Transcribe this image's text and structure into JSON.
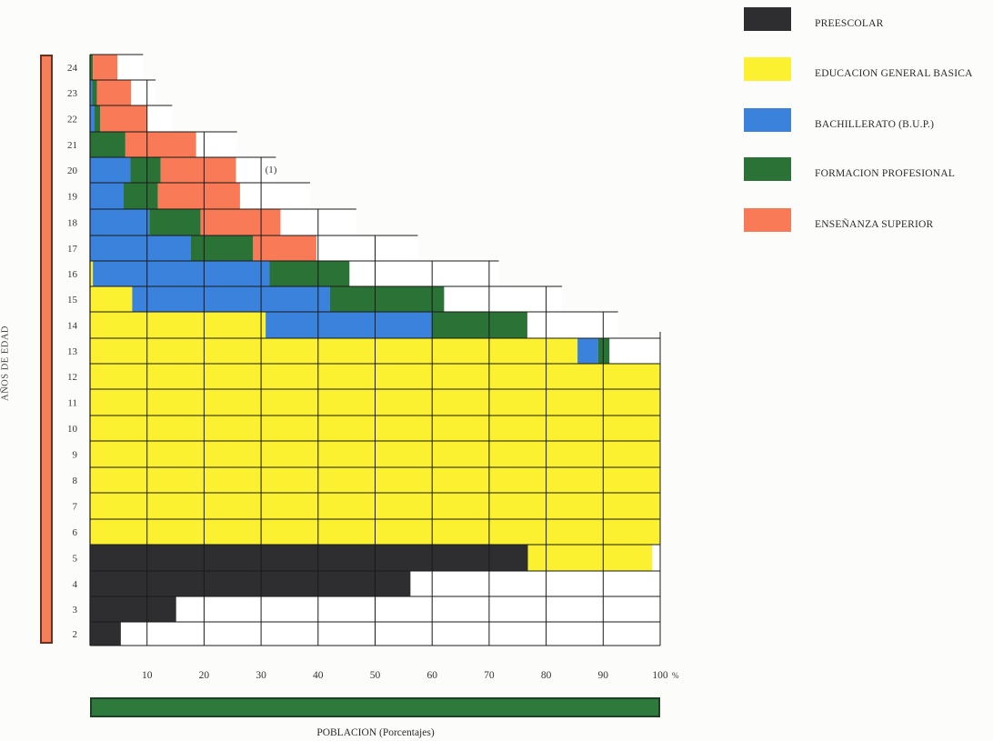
{
  "colors": {
    "preescolar": "#2e2e30",
    "egb": "#fbf130",
    "bup": "#3a82dc",
    "fp": "#2b7236",
    "superior": "#f87a56",
    "age_bar": "#f57f5b",
    "population_bar": "#2e7a3c"
  },
  "legend": [
    {
      "key": "preescolar",
      "label": "PREESCOLAR"
    },
    {
      "key": "egb",
      "label": "EDUCACION GENERAL BASICA"
    },
    {
      "key": "bup",
      "label": "BACHILLERATO (B.U.P.)"
    },
    {
      "key": "fp",
      "label": "FORMACION PROFESIONAL"
    },
    {
      "key": "superior",
      "label": "ENSEÑANZA SUPERIOR"
    }
  ],
  "y_axis_label": "AÑOS DE EDAD",
  "x_axis_label": "POBLACION (Porcentajes)",
  "x_percent_suffix": "%",
  "annotation": "(1)",
  "chart_data": {
    "type": "bar",
    "orientation": "horizontal-stacked",
    "ylabel": "AÑOS DE EDAD",
    "xlabel": "POBLACION (Porcentajes)",
    "xlim": [
      0,
      100
    ],
    "xticks": [
      10,
      20,
      30,
      40,
      50,
      60,
      70,
      80,
      90,
      100
    ],
    "categories": [
      24,
      23,
      22,
      21,
      20,
      19,
      18,
      17,
      16,
      15,
      14,
      13,
      12,
      11,
      10,
      9,
      8,
      7,
      6,
      5,
      4,
      3,
      2
    ],
    "series": [
      {
        "name": "PREESCOLAR",
        "key": "preescolar",
        "values": [
          0,
          0,
          0,
          0,
          0,
          0,
          0,
          0,
          0,
          0,
          0,
          0,
          0,
          0,
          0,
          0,
          0,
          0,
          0,
          76.8,
          56.2,
          15.1,
          5.4
        ]
      },
      {
        "name": "EDUCACION GENERAL BASICA",
        "key": "egb",
        "values": [
          0,
          0,
          0,
          0,
          0,
          0,
          0,
          0,
          0.5,
          7.4,
          30.8,
          85.5,
          100,
          100,
          100,
          100,
          100,
          100,
          100,
          21.8,
          0,
          0,
          0
        ]
      },
      {
        "name": "BACHILLERATO (B.U.P.)",
        "key": "bup",
        "values": [
          0,
          0.4,
          0.8,
          0,
          7.1,
          5.9,
          10.4,
          17.7,
          31.0,
          34.7,
          29.2,
          3.6,
          0,
          0,
          0,
          0,
          0,
          0,
          0,
          0,
          0,
          0,
          0
        ]
      },
      {
        "name": "FORMACION PROFESIONAL",
        "key": "fp",
        "values": [
          0.5,
          0.8,
          1.0,
          6.2,
          5.3,
          6.0,
          9.0,
          10.9,
          14.0,
          20.0,
          16.7,
          2.0,
          0,
          0,
          0,
          0,
          0,
          0,
          0,
          0,
          0,
          0,
          0
        ]
      },
      {
        "name": "ENSEÑANZA SUPERIOR",
        "key": "superior",
        "values": [
          4.3,
          6.0,
          8.2,
          12.4,
          13.2,
          14.4,
          14.0,
          11.1,
          0,
          0,
          0,
          0,
          0,
          0,
          0,
          0,
          0,
          0,
          0,
          0,
          0,
          0,
          0
        ]
      }
    ],
    "row_extent": [
      9.3,
      11.5,
      14.4,
      25.8,
      32.6,
      38.6,
      46.7,
      57.5,
      71.7,
      82.8,
      92.6,
      100,
      100,
      100,
      100,
      100,
      100,
      100,
      100,
      100,
      100,
      100,
      100
    ],
    "annotation": {
      "text": "(1)",
      "age": 20,
      "x": 32
    }
  }
}
